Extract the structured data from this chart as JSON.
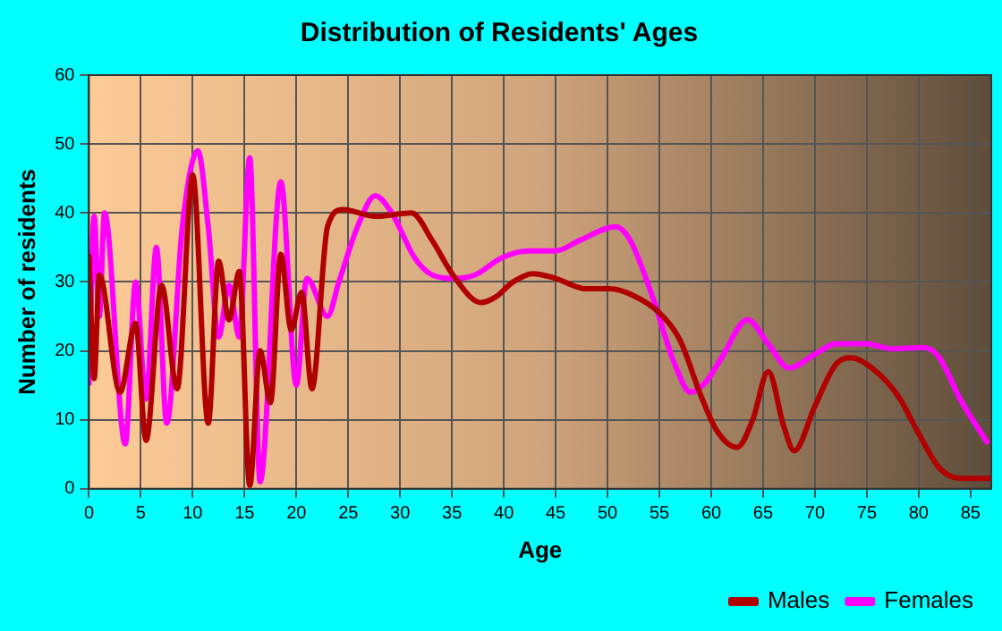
{
  "chart_data": {
    "type": "line",
    "title": "Distribution of Residents' Ages",
    "xlabel": "Age",
    "ylabel": "Number of residents",
    "xlim": [
      0,
      87
    ],
    "xticks": [
      0,
      5,
      10,
      15,
      20,
      25,
      30,
      35,
      40,
      45,
      50,
      55,
      60,
      65,
      70,
      75,
      80,
      85
    ],
    "ylim": [
      0,
      60
    ],
    "yticks": [
      0,
      10,
      20,
      30,
      40,
      50,
      60
    ],
    "grid": true,
    "legend": "bottom right",
    "marker": "none",
    "line_style": "solid",
    "series": [
      {
        "name": "Males",
        "color": "#b00000",
        "x": [
          0,
          0.5,
          1,
          3,
          4.5,
          5.5,
          7,
          8.5,
          10,
          11.5,
          12.5,
          13.5,
          14.5,
          15.5,
          16.5,
          17.5,
          18.5,
          19.5,
          20.5,
          21.5,
          23,
          24.5,
          27.6,
          31.1,
          33.1,
          35.1,
          37.8,
          39.2,
          40.9,
          42.8,
          45,
          47.9,
          50.2,
          52.5,
          55,
          57,
          59,
          60.5,
          62.5,
          64,
          65.5,
          67,
          68,
          70,
          72,
          73.5,
          75.5,
          78,
          80,
          82,
          84,
          87
        ],
        "values": [
          34,
          16,
          31,
          14,
          24,
          7,
          29.5,
          14.5,
          45.5,
          9.5,
          33,
          24.5,
          31.5,
          0.5,
          20,
          12.5,
          34,
          23,
          28.5,
          14.5,
          38,
          40.5,
          39.5,
          40,
          36,
          31,
          27,
          27.8,
          30,
          31.2,
          30.5,
          29,
          29,
          28,
          25.5,
          21.5,
          13.5,
          8.5,
          6,
          10,
          17,
          9,
          5.5,
          12,
          18,
          19,
          17.5,
          13.5,
          8,
          3,
          1.5,
          1.5
        ]
      },
      {
        "name": "Females",
        "color": "#ff00ff",
        "x": [
          0,
          0.5,
          1,
          1.5,
          3.5,
          4.5,
          5.5,
          6.5,
          7.5,
          9,
          10.5,
          11.5,
          12.5,
          13.5,
          14.5,
          15.5,
          16.5,
          18.5,
          20,
          21,
          23,
          24.1,
          25.9,
          27.6,
          29.2,
          31.4,
          33.1,
          35.1,
          37.2,
          39.8,
          42.4,
          45,
          47.3,
          50.8,
          52.2,
          54.3,
          56.5,
          58,
          59.5,
          61,
          63.5,
          65.5,
          67.5,
          70,
          72,
          75,
          77.5,
          80.5,
          82,
          84,
          86.7
        ],
        "values": [
          15,
          39.5,
          25,
          40,
          6.5,
          30,
          13,
          35,
          9.5,
          38,
          49,
          38,
          22,
          29.5,
          22,
          48,
          1,
          44.5,
          15,
          30.5,
          25,
          30,
          38,
          42.5,
          40,
          33.5,
          31,
          30.5,
          31,
          33.5,
          34.5,
          34.5,
          36,
          38,
          36,
          28,
          18,
          14,
          15.5,
          19,
          24.5,
          21,
          17.5,
          19.5,
          21,
          21,
          20.3,
          20.5,
          19,
          13,
          6.5
        ]
      }
    ]
  }
}
